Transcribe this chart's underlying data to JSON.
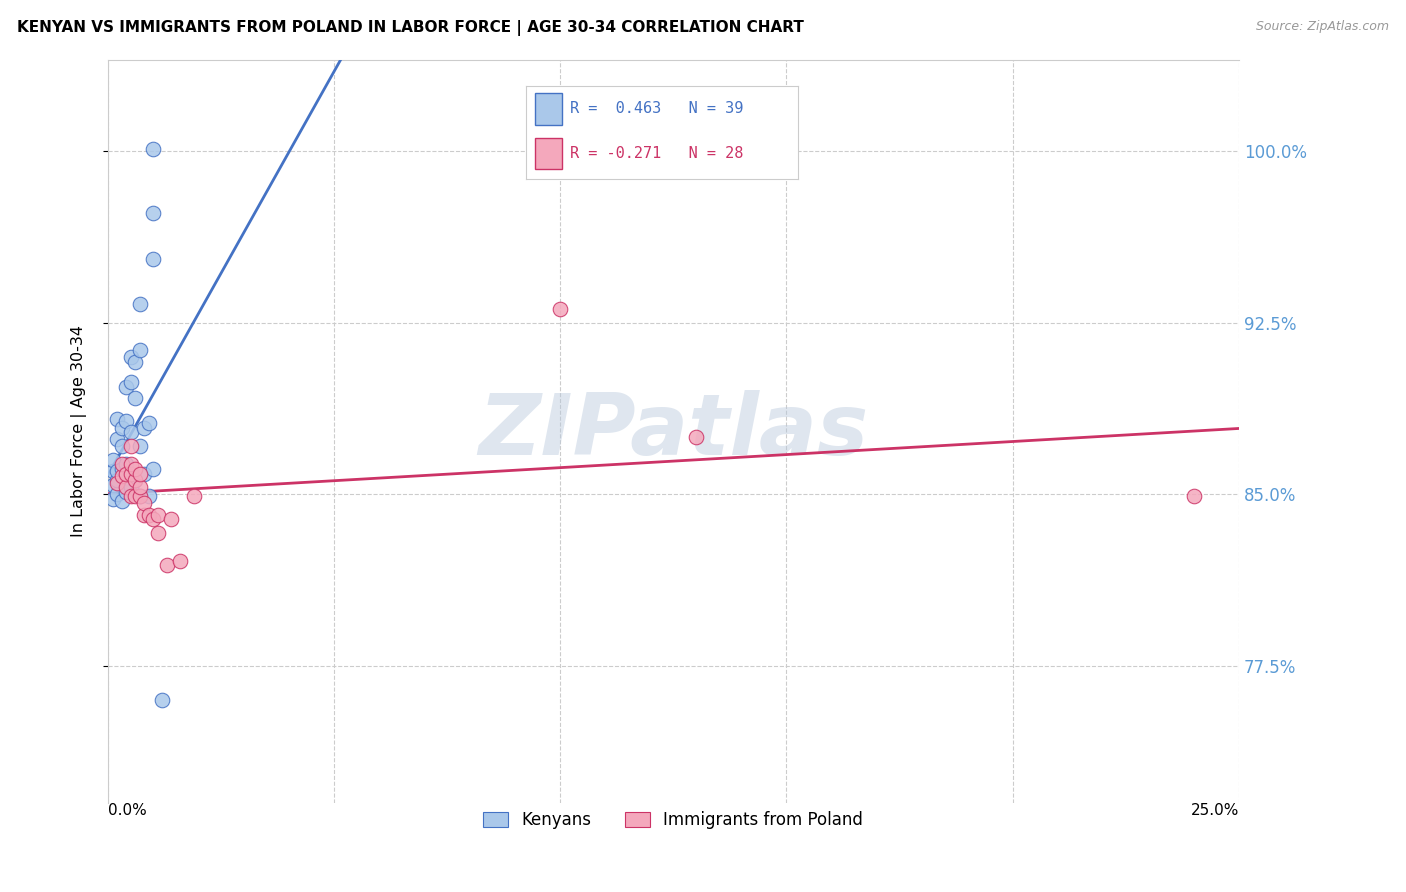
{
  "title": "KENYAN VS IMMIGRANTS FROM POLAND IN LABOR FORCE | AGE 30-34 CORRELATION CHART",
  "source": "Source: ZipAtlas.com",
  "ylabel": "In Labor Force | Age 30-34",
  "ytick_vals": [
    0.775,
    0.85,
    0.925,
    1.0
  ],
  "ytick_labels": [
    "77.5%",
    "85.0%",
    "92.5%",
    "100.0%"
  ],
  "xlim": [
    0.0,
    0.25
  ],
  "ylim": [
    0.715,
    1.04
  ],
  "legend1_label": "R =  0.463   N = 39",
  "legend2_label": "R = -0.271   N = 28",
  "kenya_face": "#aac8ea",
  "kenya_edge": "#4472c4",
  "poland_face": "#f4a8bc",
  "poland_edge": "#cc3366",
  "trendline_kenya_color": "#4472c4",
  "trendline_poland_color": "#cc3366",
  "watermark": "ZIPatlas",
  "kenya_points": [
    [
      0.001,
      0.848
    ],
    [
      0.001,
      0.854
    ],
    [
      0.001,
      0.86
    ],
    [
      0.001,
      0.865
    ],
    [
      0.002,
      0.85
    ],
    [
      0.002,
      0.856
    ],
    [
      0.002,
      0.86
    ],
    [
      0.002,
      0.874
    ],
    [
      0.002,
      0.883
    ],
    [
      0.003,
      0.847
    ],
    [
      0.003,
      0.861
    ],
    [
      0.003,
      0.871
    ],
    [
      0.003,
      0.879
    ],
    [
      0.004,
      0.851
    ],
    [
      0.004,
      0.859
    ],
    [
      0.004,
      0.863
    ],
    [
      0.004,
      0.882
    ],
    [
      0.004,
      0.897
    ],
    [
      0.005,
      0.853
    ],
    [
      0.005,
      0.859
    ],
    [
      0.005,
      0.877
    ],
    [
      0.005,
      0.899
    ],
    [
      0.005,
      0.91
    ],
    [
      0.006,
      0.856
    ],
    [
      0.006,
      0.892
    ],
    [
      0.006,
      0.908
    ],
    [
      0.007,
      0.849
    ],
    [
      0.007,
      0.871
    ],
    [
      0.007,
      0.913
    ],
    [
      0.007,
      0.933
    ],
    [
      0.008,
      0.859
    ],
    [
      0.008,
      0.879
    ],
    [
      0.009,
      0.849
    ],
    [
      0.009,
      0.881
    ],
    [
      0.01,
      0.861
    ],
    [
      0.01,
      0.953
    ],
    [
      0.01,
      0.973
    ],
    [
      0.01,
      1.001
    ],
    [
      0.012,
      0.76
    ]
  ],
  "poland_points": [
    [
      0.002,
      0.855
    ],
    [
      0.003,
      0.858
    ],
    [
      0.003,
      0.863
    ],
    [
      0.004,
      0.853
    ],
    [
      0.004,
      0.859
    ],
    [
      0.005,
      0.849
    ],
    [
      0.005,
      0.859
    ],
    [
      0.005,
      0.863
    ],
    [
      0.005,
      0.871
    ],
    [
      0.006,
      0.849
    ],
    [
      0.006,
      0.856
    ],
    [
      0.006,
      0.861
    ],
    [
      0.007,
      0.849
    ],
    [
      0.007,
      0.853
    ],
    [
      0.007,
      0.859
    ],
    [
      0.008,
      0.841
    ],
    [
      0.008,
      0.846
    ],
    [
      0.009,
      0.841
    ],
    [
      0.01,
      0.839
    ],
    [
      0.011,
      0.833
    ],
    [
      0.011,
      0.841
    ],
    [
      0.013,
      0.819
    ],
    [
      0.014,
      0.839
    ],
    [
      0.016,
      0.821
    ],
    [
      0.019,
      0.849
    ],
    [
      0.1,
      0.931
    ],
    [
      0.13,
      0.875
    ],
    [
      0.24,
      0.849
    ]
  ],
  "kenya_trendline_x": [
    0.0,
    0.25
  ],
  "poland_trendline_x": [
    0.0,
    0.25
  ]
}
